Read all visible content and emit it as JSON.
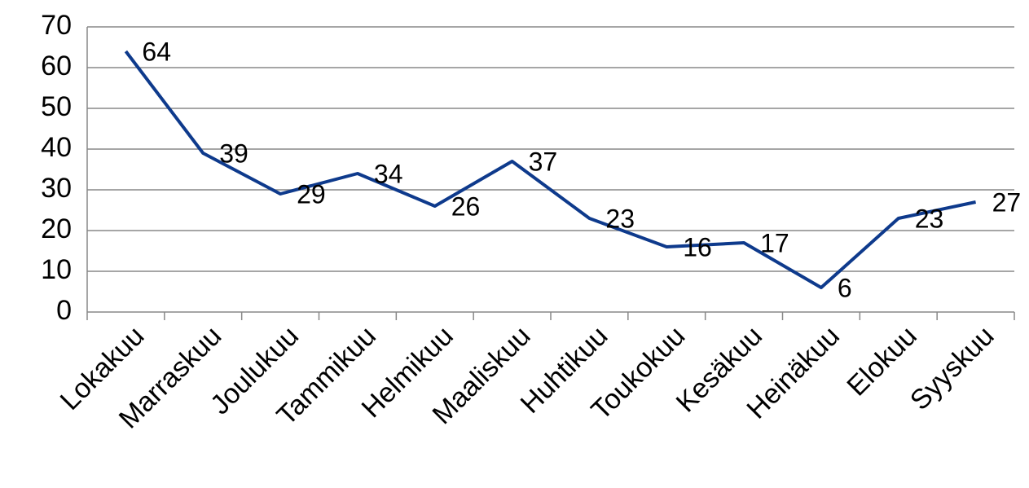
{
  "chart_data": {
    "type": "line",
    "categories": [
      "Lokakuu",
      "Marraskuu",
      "Joulukuu",
      "Tammikuu",
      "Helmikuu",
      "Maaliskuu",
      "Huhtikuu",
      "Toukokuu",
      "Kesäkuu",
      "Heinäkuu",
      "Elokuu",
      "Syyskuu"
    ],
    "values": [
      64,
      39,
      29,
      34,
      26,
      37,
      23,
      16,
      17,
      6,
      23,
      27
    ],
    "color": "#0e3a8c",
    "ylim": [
      0,
      70
    ],
    "yticks": [
      0,
      10,
      20,
      30,
      40,
      50,
      60,
      70
    ],
    "grid": true
  }
}
